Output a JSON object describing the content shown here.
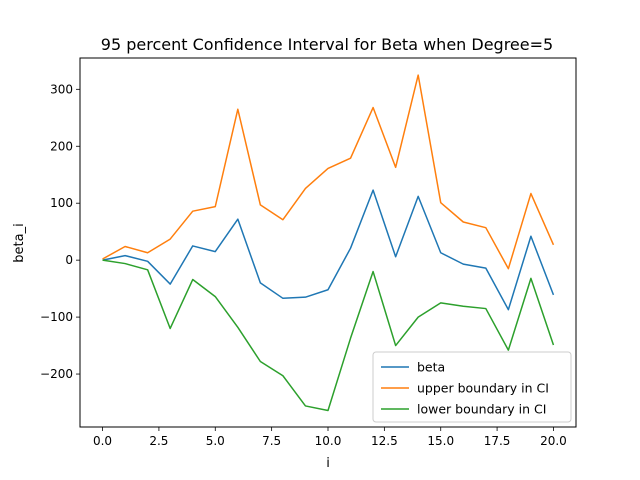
{
  "chart_data": {
    "type": "line",
    "title": "95 percent Confidence Interval for Beta when Degree=5",
    "xlabel": "i",
    "ylabel": "beta_i",
    "xlim": [
      -1,
      21
    ],
    "ylim": [
      -293,
      355
    ],
    "xticks": [
      0,
      2.5,
      5,
      7.5,
      10,
      12.5,
      15,
      17.5,
      20
    ],
    "xtick_labels": [
      "0.0",
      "2.5",
      "5.0",
      "7.5",
      "10.0",
      "12.5",
      "15.0",
      "17.5",
      "20.0"
    ],
    "yticks": [
      -200,
      -100,
      0,
      100,
      200,
      300
    ],
    "ytick_labels": [
      "−200",
      "−100",
      "0",
      "100",
      "200",
      "300"
    ],
    "grid": false,
    "legend_position": "lower-right",
    "x": [
      0,
      1,
      2,
      3,
      4,
      5,
      6,
      7,
      8,
      9,
      10,
      11,
      12,
      13,
      14,
      15,
      16,
      17,
      18,
      19,
      20
    ],
    "series": [
      {
        "name": "beta",
        "color": "#1f77b4",
        "values": [
          0,
          8,
          -2,
          -42,
          25,
          15,
          72,
          -40,
          -67,
          -65,
          -52,
          21,
          123,
          6,
          112,
          13,
          -7,
          -14,
          -87,
          42,
          -61
        ]
      },
      {
        "name": "upper boundary in CI",
        "color": "#ff7f0e",
        "values": [
          2,
          24,
          13,
          37,
          86,
          94,
          265,
          97,
          71,
          126,
          161,
          179,
          268,
          163,
          325,
          101,
          67,
          57,
          -15,
          117,
          27
        ]
      },
      {
        "name": "lower boundary in CI",
        "color": "#2ca02c",
        "values": [
          0,
          -6,
          -17,
          -120,
          -34,
          -64,
          -118,
          -178,
          -203,
          -256,
          -264,
          -137,
          -20,
          -150,
          -100,
          -75,
          -81,
          -85,
          -158,
          -32,
          -149
        ]
      }
    ]
  }
}
